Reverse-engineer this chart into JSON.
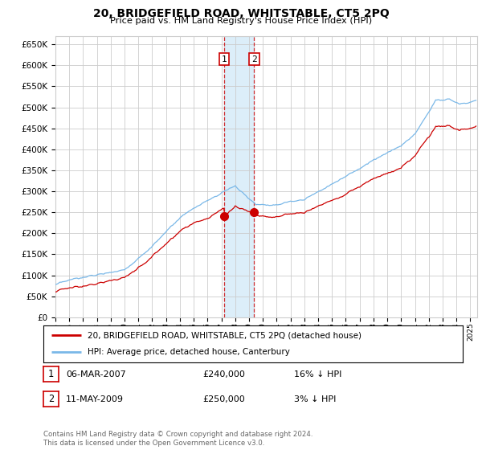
{
  "title": "20, BRIDGEFIELD ROAD, WHITSTABLE, CT5 2PQ",
  "subtitle": "Price paid vs. HM Land Registry's House Price Index (HPI)",
  "ylim": [
    0,
    670000
  ],
  "yticks": [
    0,
    50000,
    100000,
    150000,
    200000,
    250000,
    300000,
    350000,
    400000,
    450000,
    500000,
    550000,
    600000,
    650000
  ],
  "xlim_start": 1995.0,
  "xlim_end": 2025.5,
  "xticks": [
    1995,
    1996,
    1997,
    1998,
    1999,
    2000,
    2001,
    2002,
    2003,
    2004,
    2005,
    2006,
    2007,
    2008,
    2009,
    2010,
    2011,
    2012,
    2013,
    2014,
    2015,
    2016,
    2017,
    2018,
    2019,
    2020,
    2021,
    2022,
    2023,
    2024,
    2025
  ],
  "hpi_color": "#7ab8e8",
  "price_color": "#cc0000",
  "sale1_x": 2007.18,
  "sale1_y": 240000,
  "sale2_x": 2009.37,
  "sale2_y": 250000,
  "sale1_label": "1",
  "sale2_label": "2",
  "legend_entries": [
    "20, BRIDGEFIELD ROAD, WHITSTABLE, CT5 2PQ (detached house)",
    "HPI: Average price, detached house, Canterbury"
  ],
  "table_rows": [
    [
      "1",
      "06-MAR-2007",
      "£240,000",
      "16% ↓ HPI"
    ],
    [
      "2",
      "11-MAY-2009",
      "£250,000",
      "3% ↓ HPI"
    ]
  ],
  "footnote": "Contains HM Land Registry data © Crown copyright and database right 2024.\nThis data is licensed under the Open Government Licence v3.0.",
  "bg_color": "#ffffff",
  "grid_color": "#cccccc",
  "shading_color": "#d6ecf8"
}
